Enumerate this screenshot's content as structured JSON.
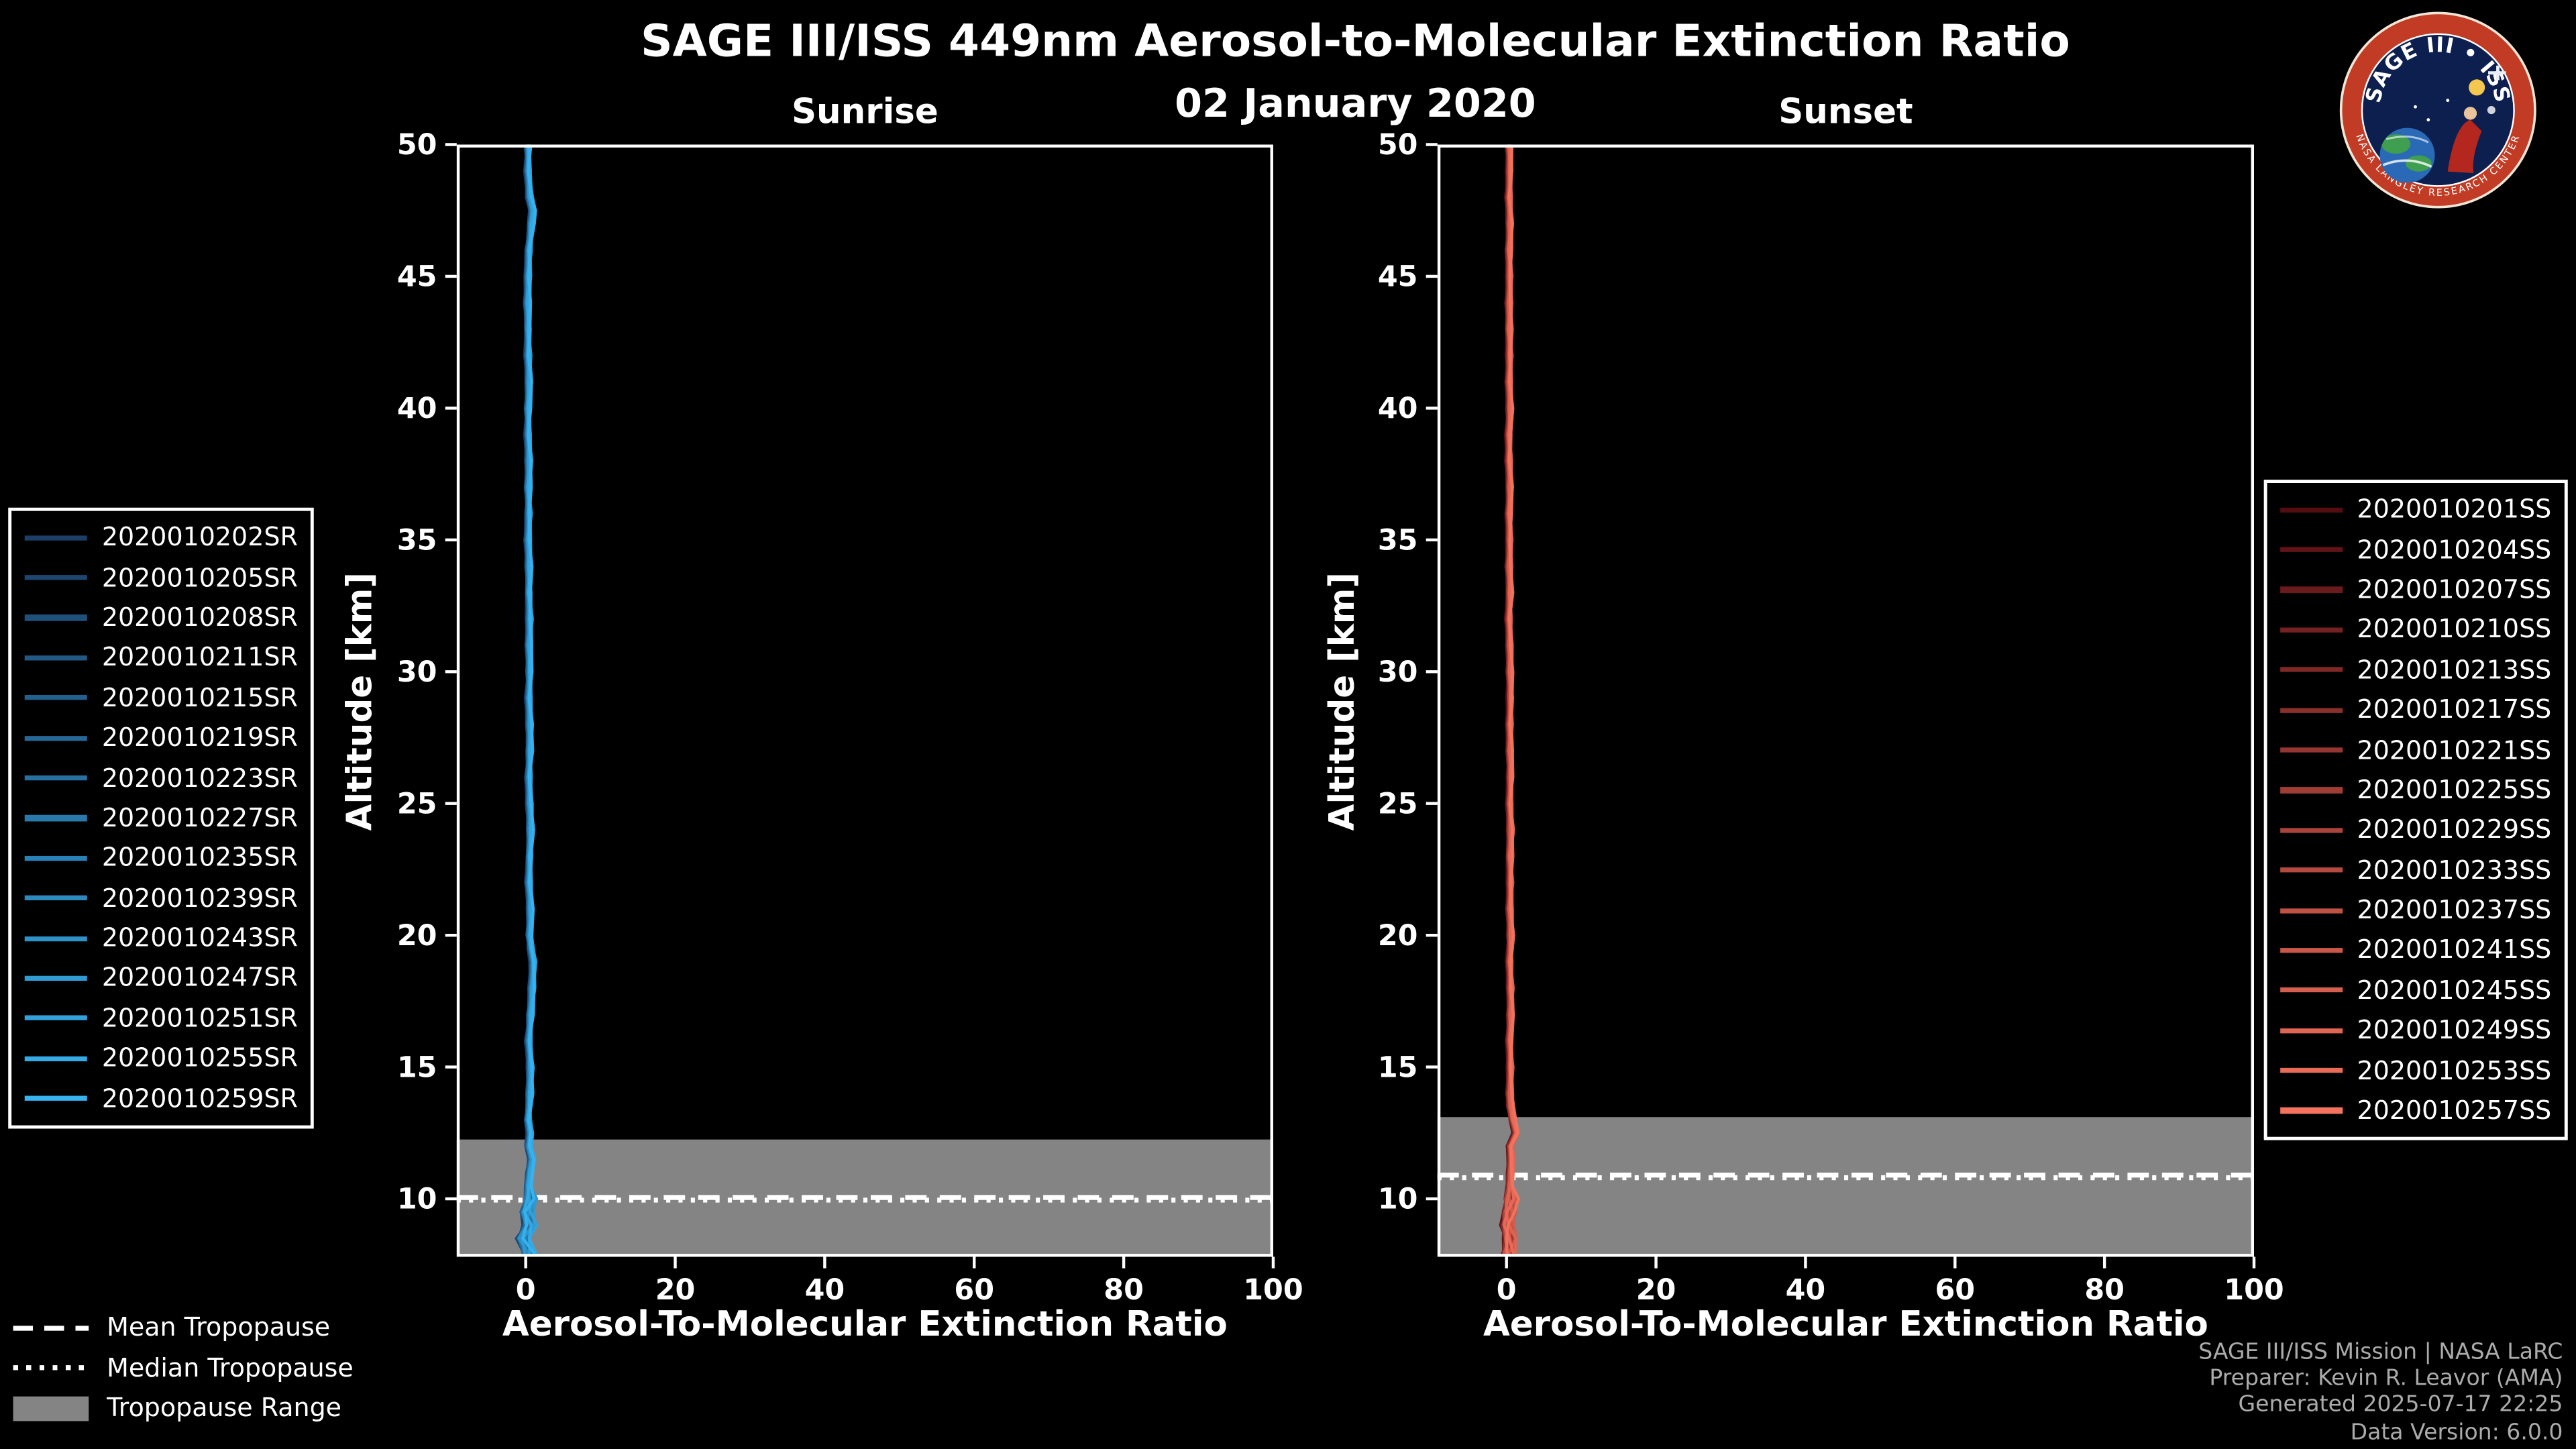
{
  "figure": {
    "title": "SAGE III/ISS 449nm Aerosol-to-Molecular Extinction Ratio",
    "date": "02 January 2020"
  },
  "logo": {
    "title": "SAGE III • ISS",
    "ring_text": "NASA LANGLEY RESEARCH CENTER"
  },
  "credits": [
    "SAGE III/ISS Mission | NASA LaRC",
    "Preparer: Kevin R. Leavor (AMA)",
    "Generated 2025-07-17 22:25",
    "Data Version: 6.0.0"
  ],
  "chart_data": {
    "type": "line",
    "title": "SAGE III/ISS 449nm Aerosol-to-Molecular Extinction Ratio",
    "subtitle": "02 January 2020",
    "tropopause_legend": [
      "Mean Tropopause",
      "Median Tropopause",
      "Tropopause Range"
    ],
    "colors": {
      "background": "#000000",
      "tropopause_band": "#848484",
      "tropopause_line": "#ffffff"
    },
    "panels": [
      {
        "id": "sunrise",
        "title": "Sunrise",
        "xlabel": "Aerosol-To-Molecular Extinction Ratio",
        "ylabel": "Altitude [km]",
        "xlim": [
          -9.23,
          100
        ],
        "ylim": [
          7.8,
          50
        ],
        "xticks": [
          0,
          20,
          40,
          60,
          80,
          100
        ],
        "yticks": [
          50,
          45,
          40,
          35,
          30,
          25,
          20,
          15,
          10
        ],
        "color_start": "#1b3f66",
        "color_end": "#36b3f0",
        "series": [
          "2020010202SR",
          "2020010205SR",
          "2020010208SR",
          "2020010211SR",
          "2020010215SR",
          "2020010219SR",
          "2020010223SR",
          "2020010227SR",
          "2020010235SR",
          "2020010239SR",
          "2020010243SR",
          "2020010247SR",
          "2020010251SR",
          "2020010255SR",
          "2020010259SR"
        ],
        "tropopause": {
          "mean": 10.05,
          "median": 9.95,
          "range_top": 12.25,
          "range_bottom": 7.8
        },
        "profile": [
          [
            7.9,
            0.5
          ],
          [
            8.5,
            -0.3
          ],
          [
            9,
            0.6
          ],
          [
            9.5,
            0.2
          ],
          [
            10,
            0.7
          ],
          [
            10.5,
            0.3
          ],
          [
            11,
            0.5
          ],
          [
            11.5,
            0.8
          ],
          [
            12,
            0.4
          ],
          [
            12.5,
            0.6
          ],
          [
            13,
            0.3
          ],
          [
            14,
            0.5
          ],
          [
            15,
            0.6
          ],
          [
            16,
            0.4
          ],
          [
            17,
            0.6
          ],
          [
            18,
            0.8
          ],
          [
            19,
            1.0
          ],
          [
            19.5,
            0.7
          ],
          [
            20,
            0.5
          ],
          [
            21,
            0.6
          ],
          [
            22,
            0.4
          ],
          [
            23,
            0.5
          ],
          [
            24,
            0.6
          ],
          [
            25,
            0.5
          ],
          [
            26,
            0.4
          ],
          [
            27,
            0.5
          ],
          [
            28,
            0.5
          ],
          [
            29,
            0.4
          ],
          [
            30,
            0.5
          ],
          [
            31,
            0.4
          ],
          [
            32,
            0.5
          ],
          [
            33,
            0.4
          ],
          [
            34,
            0.4
          ],
          [
            35,
            0.3
          ],
          [
            36,
            0.4
          ],
          [
            37,
            0.3
          ],
          [
            38,
            0.4
          ],
          [
            39,
            0.3
          ],
          [
            40,
            0.3
          ],
          [
            41,
            0.4
          ],
          [
            42,
            0.3
          ],
          [
            43,
            0.3
          ],
          [
            44,
            0.2
          ],
          [
            45,
            0.3
          ],
          [
            46,
            0.4
          ],
          [
            47,
            0.7
          ],
          [
            47.5,
            0.9
          ],
          [
            48,
            0.5
          ],
          [
            49,
            0.3
          ],
          [
            50,
            0.3
          ]
        ]
      },
      {
        "id": "sunset",
        "title": "Sunset",
        "xlabel": "Aerosol-To-Molecular Extinction Ratio",
        "ylabel": "Altitude [km]",
        "xlim": [
          -9.23,
          100
        ],
        "ylim": [
          7.8,
          50
        ],
        "xticks": [
          0,
          20,
          40,
          60,
          80,
          100
        ],
        "yticks": [
          50,
          45,
          40,
          35,
          30,
          25,
          20,
          15,
          10
        ],
        "color_start": "#560d12",
        "color_end": "#f4735e",
        "series": [
          "2020010201SS",
          "2020010204SS",
          "2020010207SS",
          "2020010210SS",
          "2020010213SS",
          "2020010217SS",
          "2020010221SS",
          "2020010225SS",
          "2020010229SS",
          "2020010233SS",
          "2020010237SS",
          "2020010241SS",
          "2020010245SS",
          "2020010249SS",
          "2020010253SS",
          "2020010257SS"
        ],
        "tropopause": {
          "mean": 10.9,
          "median": 10.8,
          "range_top": 13.1,
          "range_bottom": 7.8
        },
        "profile": [
          [
            7.9,
            0.3
          ],
          [
            8.5,
            0.5
          ],
          [
            9,
            0.2
          ],
          [
            9.5,
            0.4
          ],
          [
            10,
            0.6
          ],
          [
            10.5,
            0.4
          ],
          [
            11,
            0.5
          ],
          [
            11.5,
            0.6
          ],
          [
            12,
            0.5
          ],
          [
            12.5,
            1.3
          ],
          [
            13,
            0.8
          ],
          [
            13.5,
            0.5
          ],
          [
            14,
            0.4
          ],
          [
            15,
            0.5
          ],
          [
            16,
            0.4
          ],
          [
            17,
            0.5
          ],
          [
            18,
            0.5
          ],
          [
            19,
            0.4
          ],
          [
            20,
            0.5
          ],
          [
            21,
            0.4
          ],
          [
            22,
            0.5
          ],
          [
            23,
            0.4
          ],
          [
            24,
            0.5
          ],
          [
            25,
            0.4
          ],
          [
            26,
            0.5
          ],
          [
            27,
            0.4
          ],
          [
            28,
            0.4
          ],
          [
            29,
            0.5
          ],
          [
            30,
            0.4
          ],
          [
            31,
            0.4
          ],
          [
            32,
            0.3
          ],
          [
            33,
            0.4
          ],
          [
            34,
            0.3
          ],
          [
            35,
            0.4
          ],
          [
            36,
            0.3
          ],
          [
            37,
            0.4
          ],
          [
            38,
            0.3
          ],
          [
            39,
            0.3
          ],
          [
            40,
            0.4
          ],
          [
            41,
            0.3
          ],
          [
            42,
            0.4
          ],
          [
            43,
            0.3
          ],
          [
            44,
            0.3
          ],
          [
            45,
            0.4
          ],
          [
            46,
            0.3
          ],
          [
            47,
            0.4
          ],
          [
            48,
            0.3
          ],
          [
            49,
            0.4
          ],
          [
            50,
            0.3
          ]
        ]
      }
    ]
  }
}
